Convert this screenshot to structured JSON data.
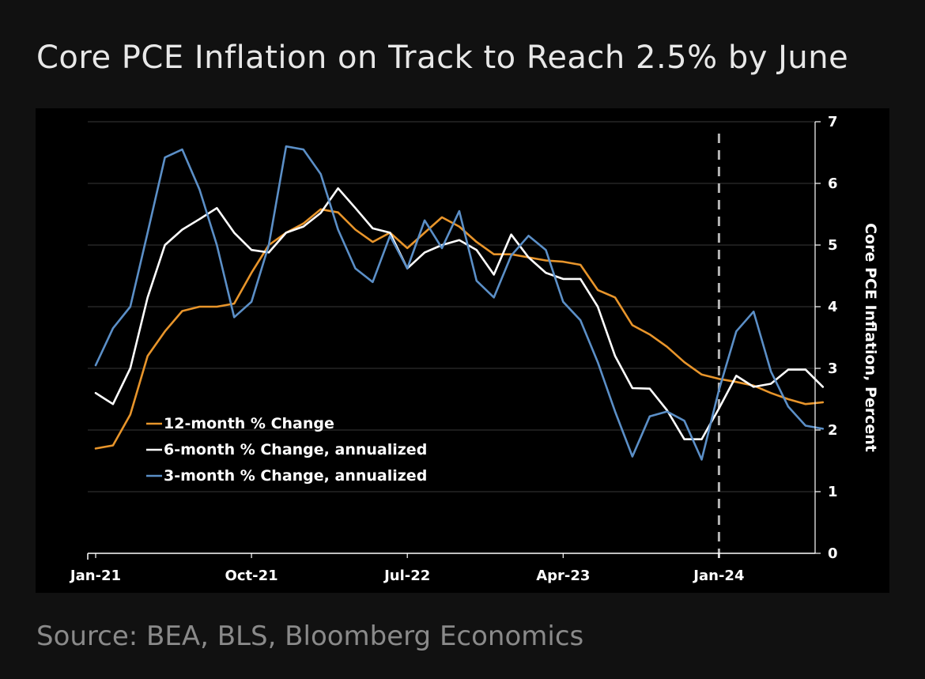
{
  "title": "Core PCE Inflation on Track to Reach 2.5% by June",
  "source": "Source: BEA, BLS, Bloomberg Economics",
  "colors": {
    "s12": "#e8952b",
    "s6": "#ffffff",
    "s3": "#5b8fc7",
    "grid": "#2e2e2e",
    "marker": "#b5b5b5"
  },
  "chart_data": {
    "type": "line",
    "title": "Core PCE Inflation on Track to Reach 2.5% by June",
    "ylabel": "Core PCE Inflation, Percent",
    "xlabel": "",
    "ylim": [
      0,
      7
    ],
    "yticks": [
      "0",
      "1",
      "2",
      "3",
      "4",
      "5",
      "6",
      "7"
    ],
    "y_axis_side": "right",
    "grid": true,
    "legend_position": "center-left",
    "x": [
      "2021-01",
      "2021-02",
      "2021-03",
      "2021-04",
      "2021-05",
      "2021-06",
      "2021-07",
      "2021-08",
      "2021-09",
      "2021-10",
      "2021-11",
      "2021-12",
      "2022-01",
      "2022-02",
      "2022-03",
      "2022-04",
      "2022-05",
      "2022-06",
      "2022-07",
      "2022-08",
      "2022-09",
      "2022-10",
      "2022-11",
      "2022-12",
      "2023-01",
      "2023-02",
      "2023-03",
      "2023-04",
      "2023-05",
      "2023-06",
      "2023-07",
      "2023-08",
      "2023-09",
      "2023-10",
      "2023-11",
      "2023-12",
      "2024-01",
      "2024-02",
      "2024-03",
      "2024-04",
      "2024-05",
      "2024-06",
      "2024-07"
    ],
    "x_tick_labels": [
      {
        "x": "2021-01",
        "label": "Jan-21"
      },
      {
        "x": "2021-10",
        "label": "Oct-21"
      },
      {
        "x": "2022-07",
        "label": "Jul-22"
      },
      {
        "x": "2023-04",
        "label": "Apr-23"
      },
      {
        "x": "2024-01",
        "label": "Jan-24"
      }
    ],
    "vertical_marker": {
      "x": "2024-01",
      "style": "dashed"
    },
    "series": [
      {
        "name": "12-month % Change",
        "color": "#e8952b",
        "values": [
          1.7,
          1.75,
          2.25,
          3.2,
          3.6,
          3.93,
          4.0,
          4.0,
          4.05,
          4.55,
          5.0,
          5.2,
          5.35,
          5.58,
          5.53,
          5.25,
          5.05,
          5.2,
          4.95,
          5.2,
          5.45,
          5.3,
          5.05,
          4.85,
          4.85,
          4.8,
          4.75,
          4.73,
          4.68,
          4.27,
          4.15,
          3.7,
          3.55,
          3.35,
          3.1,
          2.9,
          2.83,
          2.78,
          2.72,
          2.6,
          2.5,
          2.42,
          2.45
        ]
      },
      {
        "name": "6-month % Change, annualized",
        "color": "#ffffff",
        "values": [
          2.6,
          2.42,
          3.0,
          4.15,
          5.0,
          5.25,
          5.42,
          5.6,
          5.2,
          4.92,
          4.88,
          5.2,
          5.3,
          5.52,
          5.92,
          5.6,
          5.27,
          5.2,
          4.62,
          4.88,
          5.0,
          5.08,
          4.92,
          4.52,
          5.17,
          4.8,
          4.55,
          4.45,
          4.45,
          4.0,
          3.2,
          2.68,
          2.67,
          2.32,
          1.85,
          1.85,
          2.35,
          2.88,
          2.7,
          2.75,
          2.98,
          2.98,
          2.7
        ]
      },
      {
        "name": "3-month % Change, annualized",
        "color": "#5b8fc7",
        "values": [
          3.05,
          3.65,
          4.0,
          5.2,
          6.42,
          6.55,
          5.9,
          5.0,
          3.83,
          4.08,
          5.0,
          6.6,
          6.55,
          6.15,
          5.25,
          4.62,
          4.4,
          5.15,
          4.62,
          5.4,
          4.95,
          5.55,
          4.42,
          4.15,
          4.83,
          5.15,
          4.92,
          4.08,
          3.78,
          3.1,
          2.3,
          1.57,
          2.22,
          2.3,
          2.15,
          1.52,
          2.65,
          3.6,
          3.92,
          2.95,
          2.38,
          2.07,
          2.02
        ]
      }
    ]
  }
}
